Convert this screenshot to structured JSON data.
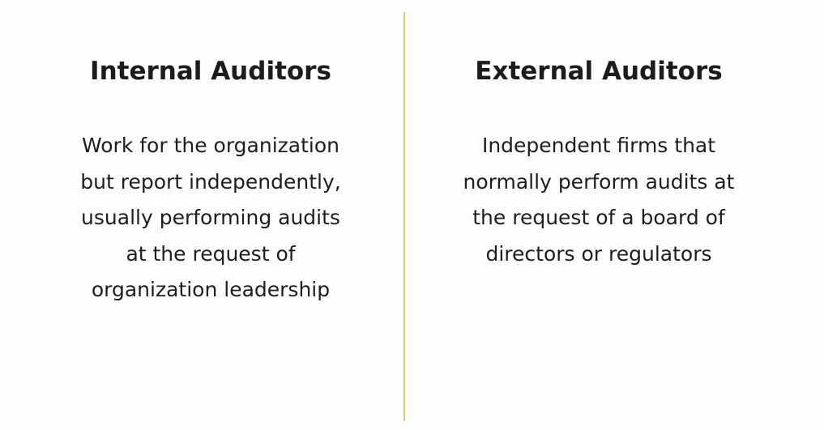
{
  "divider_color": "#dccb6a",
  "left": {
    "heading": "Internal Auditors",
    "lines": [
      "Work for the organization",
      "but report independently,",
      "usually performing audits",
      "at the request of",
      "organization leadership"
    ]
  },
  "right": {
    "heading": "External Auditors",
    "lines": [
      "Independent firms that",
      "normally perform audits at",
      "the request of a board of",
      "directors or regulators"
    ]
  }
}
